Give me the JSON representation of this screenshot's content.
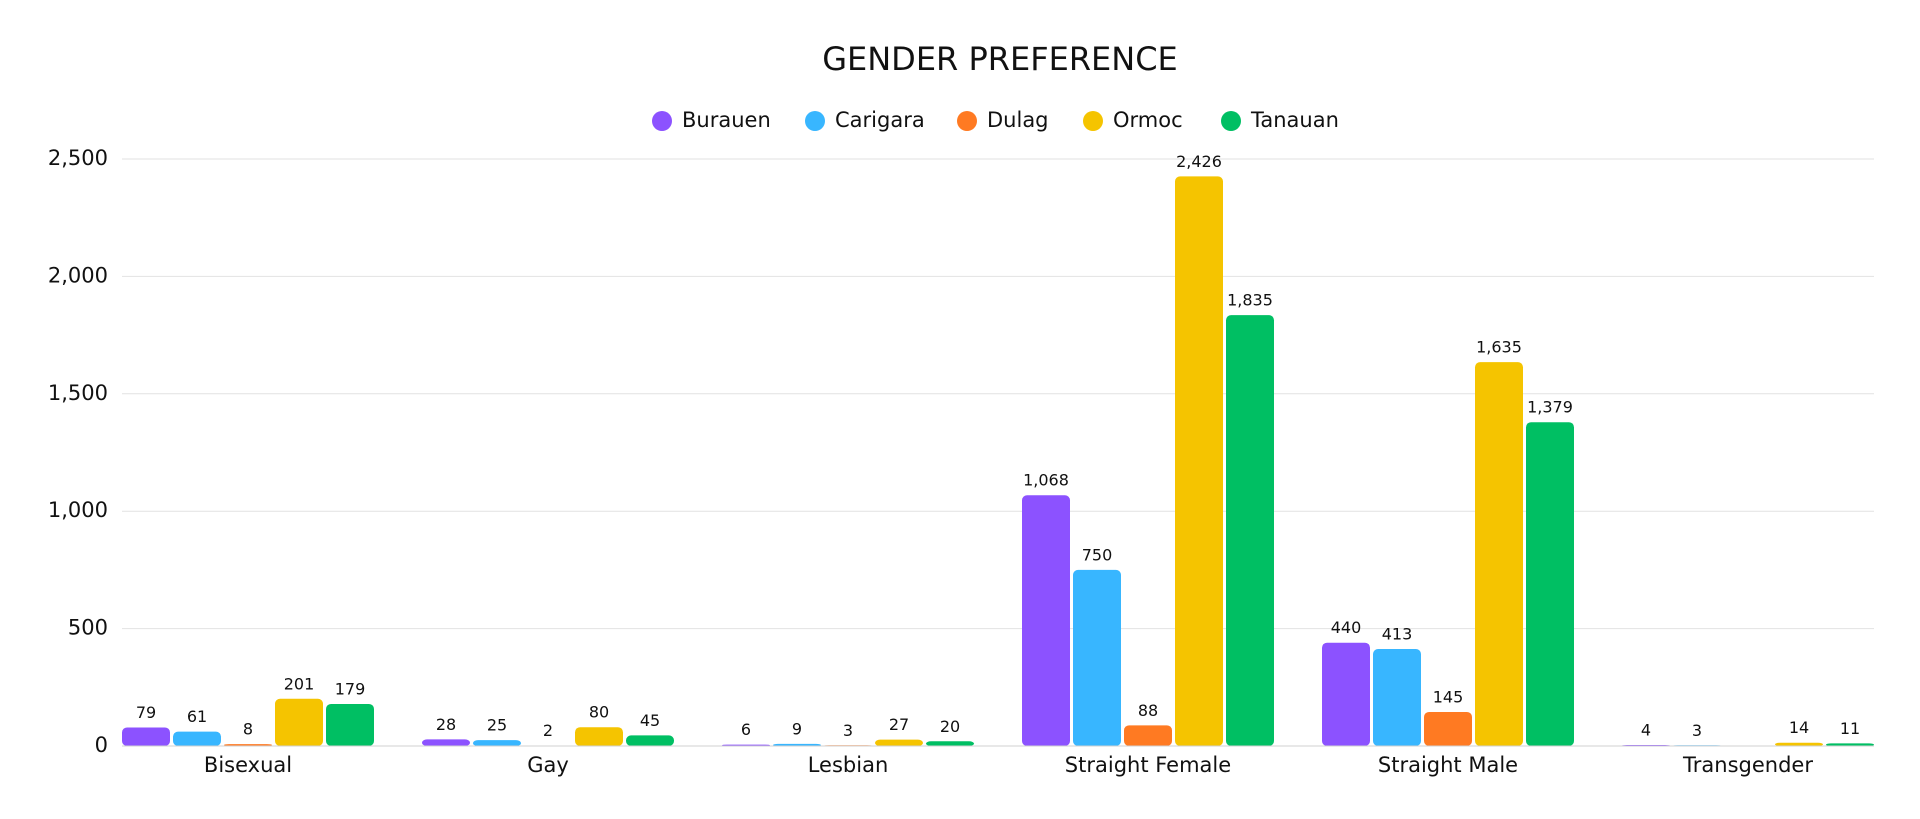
{
  "chart_data": {
    "type": "bar",
    "title": "GENDER PREFERENCE",
    "categories": [
      "Bisexual",
      "Gay",
      "Lesbian",
      "Straight Female",
      "Straight Male",
      "Transgender"
    ],
    "series": [
      {
        "name": "Burauen",
        "color": "#8c52ff",
        "values": [
          79,
          28,
          6,
          1068,
          440,
          4
        ],
        "value_labels": [
          "79",
          "28",
          "6",
          "1,068",
          "440",
          "4"
        ]
      },
      {
        "name": "Carigara",
        "color": "#38b6ff",
        "values": [
          61,
          25,
          9,
          750,
          413,
          3
        ],
        "value_labels": [
          "61",
          "25",
          "9",
          "750",
          "413",
          "3"
        ]
      },
      {
        "name": "Dulag",
        "color": "#ff7a22",
        "values": [
          8,
          2,
          3,
          88,
          145,
          null
        ],
        "value_labels": [
          "8",
          "2",
          "3",
          "88",
          "145",
          null
        ]
      },
      {
        "name": "Ormoc",
        "color": "#f5c400",
        "values": [
          201,
          80,
          27,
          2426,
          1635,
          14
        ],
        "value_labels": [
          "201",
          "80",
          "27",
          "2,426",
          "1,635",
          "14"
        ]
      },
      {
        "name": "Tanauan",
        "color": "#00bf63",
        "values": [
          179,
          45,
          20,
          1835,
          1379,
          11
        ],
        "value_labels": [
          "179",
          "45",
          "20",
          "1,835",
          "1,379",
          "11"
        ]
      }
    ],
    "ylim": [
      0,
      2500
    ],
    "yticks": [
      0,
      500,
      {
        "value": 1000,
        "label": "1,000"
      },
      {
        "value": 1500,
        "label": "1,500"
      },
      {
        "value": 2000,
        "label": "2,000"
      },
      {
        "value": 2500,
        "label": "2,500"
      }
    ],
    "grid": true,
    "legend": "top"
  }
}
